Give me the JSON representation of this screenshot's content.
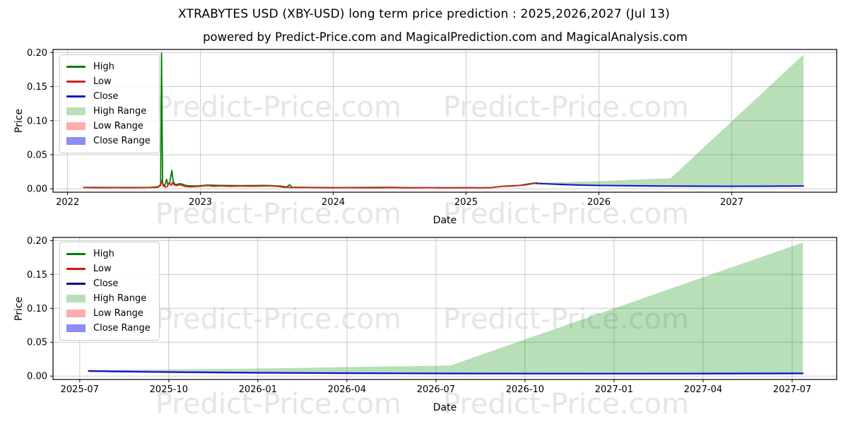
{
  "figure": {
    "title": "XTRABYTES USD (XBY-USD) long term price prediction : 2025,2026,2027 (Jul 13)",
    "subtitle": "powered by Predict-Price.com and MagicalPrediction.com and MagicalAnalysis.com",
    "watermark_text": "Predict-Price.com",
    "background_color": "#ffffff",
    "grid_color": "#c9c9c9",
    "spine_color": "#000000"
  },
  "chart_data": [
    {
      "type": "line",
      "name": "long-term-history-and-prediction",
      "xlabel": "Date",
      "ylabel": "Price",
      "grid": true,
      "legend_position": "upper-left",
      "xlim": [
        2021.89,
        2027.79
      ],
      "ylim": [
        -0.005,
        0.2045
      ],
      "xticks": [
        {
          "v": 2022,
          "label": "2022"
        },
        {
          "v": 2023,
          "label": "2023"
        },
        {
          "v": 2024,
          "label": "2024"
        },
        {
          "v": 2025,
          "label": "2025"
        },
        {
          "v": 2026,
          "label": "2026"
        },
        {
          "v": 2027,
          "label": "2027"
        }
      ],
      "yticks": [
        {
          "v": 0.0,
          "label": "0.00"
        },
        {
          "v": 0.05,
          "label": "0.05"
        },
        {
          "v": 0.1,
          "label": "0.10"
        },
        {
          "v": 0.15,
          "label": "0.15"
        },
        {
          "v": 0.2,
          "label": "0.20"
        }
      ],
      "legend": [
        {
          "label": "High",
          "swatch": "line",
          "color": "#008000"
        },
        {
          "label": "Low",
          "swatch": "line",
          "color": "#d62020"
        },
        {
          "label": "Close",
          "swatch": "line",
          "color": "#1515cd"
        },
        {
          "label": "High Range",
          "swatch": "patch",
          "color": "rgba(0,140,0,0.28)"
        },
        {
          "label": "Low Range",
          "swatch": "patch",
          "color": "rgba(255,70,70,0.45)"
        },
        {
          "label": "Close Range",
          "swatch": "patch",
          "color": "rgba(80,80,240,0.65)"
        }
      ],
      "bands": [
        {
          "name": "high-range",
          "fill": "rgba(0,140,0,0.28)",
          "x": [
            2025.53,
            2025.7,
            2025.9,
            2026.1,
            2026.3,
            2026.54,
            2026.8,
            2027.0,
            2027.25,
            2027.54
          ],
          "top": [
            0.009,
            0.0097,
            0.0106,
            0.012,
            0.0138,
            0.0155,
            0.0627,
            0.099,
            0.1444,
            0.197
          ],
          "bottom": [
            0.008,
            0.0066,
            0.0053,
            0.0047,
            0.0043,
            0.004,
            0.0038,
            0.0037,
            0.0038,
            0.0041
          ]
        },
        {
          "name": "low-range",
          "fill": "rgba(255,70,70,0.40)",
          "x": [
            2025.53,
            2025.8,
            2026.0,
            2026.54,
            2027.0,
            2027.54
          ],
          "top": [
            0.008,
            0.0058,
            0.005,
            0.004,
            0.0037,
            0.0041
          ],
          "bottom": [
            0.007,
            0.0046,
            0.0039,
            0.0029,
            0.0026,
            0.0028
          ]
        },
        {
          "name": "close-range",
          "fill": "rgba(80,80,240,0.50)",
          "x": [
            2025.53,
            2025.8,
            2026.0,
            2026.54,
            2027.0,
            2027.54
          ],
          "top": [
            0.0092,
            0.007,
            0.0062,
            0.0052,
            0.0049,
            0.0053
          ],
          "bottom": [
            0.0068,
            0.0046,
            0.0038,
            0.0028,
            0.0025,
            0.0029
          ]
        }
      ],
      "series": [
        {
          "name": "High",
          "color": "#008000",
          "width": 1.8,
          "points": [
            [
              2022.12,
              0.0022
            ],
            [
              2022.3,
              0.002
            ],
            [
              2022.5,
              0.002
            ],
            [
              2022.62,
              0.0022
            ],
            [
              2022.68,
              0.003
            ],
            [
              2022.7,
              0.006
            ],
            [
              2022.707,
              0.199
            ],
            [
              2022.715,
              0.008
            ],
            [
              2022.73,
              0.004
            ],
            [
              2022.745,
              0.014
            ],
            [
              2022.755,
              0.005
            ],
            [
              2022.77,
              0.01
            ],
            [
              2022.785,
              0.027
            ],
            [
              2022.795,
              0.011
            ],
            [
              2022.81,
              0.006
            ],
            [
              2022.85,
              0.0075
            ],
            [
              2022.9,
              0.0045
            ],
            [
              2022.97,
              0.004
            ],
            [
              2023.05,
              0.0055
            ],
            [
              2023.15,
              0.005
            ],
            [
              2023.3,
              0.0048
            ],
            [
              2023.5,
              0.005
            ],
            [
              2023.6,
              0.004
            ],
            [
              2023.65,
              0.0026
            ],
            [
              2023.67,
              0.006
            ],
            [
              2023.69,
              0.0024
            ],
            [
              2023.8,
              0.0022
            ],
            [
              2024.0,
              0.0018
            ],
            [
              2024.2,
              0.002
            ],
            [
              2024.42,
              0.0023
            ],
            [
              2024.6,
              0.0017
            ],
            [
              2024.8,
              0.0017
            ],
            [
              2025.0,
              0.0018
            ],
            [
              2025.1,
              0.0016
            ],
            [
              2025.2,
              0.002
            ],
            [
              2025.3,
              0.0042
            ],
            [
              2025.4,
              0.005
            ],
            [
              2025.48,
              0.0075
            ],
            [
              2025.53,
              0.0088
            ]
          ]
        },
        {
          "name": "Low",
          "color": "#d62020",
          "width": 1.8,
          "points": [
            [
              2022.12,
              0.0018
            ],
            [
              2022.25,
              0.0015
            ],
            [
              2022.35,
              0.0017
            ],
            [
              2022.45,
              0.0015
            ],
            [
              2022.55,
              0.0016
            ],
            [
              2022.62,
              0.0018
            ],
            [
              2022.68,
              0.0022
            ],
            [
              2022.7,
              0.005
            ],
            [
              2022.71,
              0.012
            ],
            [
              2022.72,
              0.004
            ],
            [
              2022.735,
              0.0025
            ],
            [
              2022.75,
              0.003
            ],
            [
              2022.765,
              0.009
            ],
            [
              2022.78,
              0.005
            ],
            [
              2022.79,
              0.0095
            ],
            [
              2022.8,
              0.006
            ],
            [
              2022.82,
              0.0045
            ],
            [
              2022.85,
              0.006
            ],
            [
              2022.88,
              0.0035
            ],
            [
              2022.92,
              0.0028
            ],
            [
              2022.97,
              0.0032
            ],
            [
              2023.02,
              0.0042
            ],
            [
              2023.06,
              0.0048
            ],
            [
              2023.1,
              0.0036
            ],
            [
              2023.15,
              0.0042
            ],
            [
              2023.22,
              0.0036
            ],
            [
              2023.3,
              0.0041
            ],
            [
              2023.38,
              0.0037
            ],
            [
              2023.46,
              0.004
            ],
            [
              2023.52,
              0.0043
            ],
            [
              2023.58,
              0.0036
            ],
            [
              2023.63,
              0.0022
            ],
            [
              2023.7,
              0.0018
            ],
            [
              2023.8,
              0.0019
            ],
            [
              2023.9,
              0.0016
            ],
            [
              2024.0,
              0.0015
            ],
            [
              2024.1,
              0.0017
            ],
            [
              2024.2,
              0.0015
            ],
            [
              2024.35,
              0.0014
            ],
            [
              2024.42,
              0.0019
            ],
            [
              2024.5,
              0.0015
            ],
            [
              2024.6,
              0.0014
            ],
            [
              2024.72,
              0.0017
            ],
            [
              2024.8,
              0.0014
            ],
            [
              2024.9,
              0.0013
            ],
            [
              2025.0,
              0.0015
            ],
            [
              2025.1,
              0.0013
            ],
            [
              2025.18,
              0.0016
            ],
            [
              2025.26,
              0.0034
            ],
            [
              2025.32,
              0.0038
            ],
            [
              2025.38,
              0.0045
            ],
            [
              2025.44,
              0.0055
            ],
            [
              2025.48,
              0.0068
            ],
            [
              2025.51,
              0.0078
            ],
            [
              2025.53,
              0.008
            ]
          ]
        },
        {
          "name": "Close",
          "color": "#1515cd",
          "width": 1.9,
          "points": [
            [
              2025.53,
              0.008
            ],
            [
              2025.62,
              0.0071
            ],
            [
              2025.72,
              0.0064
            ],
            [
              2025.85,
              0.0056
            ],
            [
              2026.0,
              0.005
            ],
            [
              2026.15,
              0.0046
            ],
            [
              2026.3,
              0.0043
            ],
            [
              2026.54,
              0.004
            ],
            [
              2026.8,
              0.0038
            ],
            [
              2027.0,
              0.0037
            ],
            [
              2027.25,
              0.0038
            ],
            [
              2027.54,
              0.0041
            ]
          ]
        }
      ]
    },
    {
      "type": "line",
      "name": "prediction-detail",
      "xlabel": "Date",
      "ylabel": "Price",
      "grid": true,
      "legend_position": "upper-left",
      "xlim": [
        2025.425,
        2027.625
      ],
      "ylim": [
        -0.005,
        0.2045
      ],
      "xticks": [
        {
          "v": 2025.5,
          "label": "2025-07"
        },
        {
          "v": 2025.75,
          "label": "2025-10"
        },
        {
          "v": 2026.0,
          "label": "2026-01"
        },
        {
          "v": 2026.25,
          "label": "2026-04"
        },
        {
          "v": 2026.5,
          "label": "2026-07"
        },
        {
          "v": 2026.75,
          "label": "2026-10"
        },
        {
          "v": 2027.0,
          "label": "2027-01"
        },
        {
          "v": 2027.25,
          "label": "2027-04"
        },
        {
          "v": 2027.5,
          "label": "2027-07"
        }
      ],
      "yticks": [
        {
          "v": 0.0,
          "label": "0.00"
        },
        {
          "v": 0.05,
          "label": "0.05"
        },
        {
          "v": 0.1,
          "label": "0.10"
        },
        {
          "v": 0.15,
          "label": "0.15"
        },
        {
          "v": 0.2,
          "label": "0.20"
        }
      ],
      "legend": [
        {
          "label": "High",
          "swatch": "line",
          "color": "#008000"
        },
        {
          "label": "Low",
          "swatch": "line",
          "color": "#e01010"
        },
        {
          "label": "Close",
          "swatch": "line",
          "color": "#00008b"
        },
        {
          "label": "High Range",
          "swatch": "patch",
          "color": "rgba(0,140,0,0.28)"
        },
        {
          "label": "Low Range",
          "swatch": "patch",
          "color": "rgba(255,70,70,0.45)"
        },
        {
          "label": "Close Range",
          "swatch": "patch",
          "color": "rgba(80,80,240,0.65)"
        }
      ],
      "bands": [
        {
          "name": "high-range",
          "fill": "rgba(0,140,0,0.28)",
          "x": [
            2025.525,
            2025.7,
            2025.9,
            2026.1,
            2026.3,
            2026.54,
            2026.8,
            2027.0,
            2027.25,
            2027.53
          ],
          "top": [
            0.0088,
            0.0096,
            0.0105,
            0.0119,
            0.0137,
            0.0155,
            0.0632,
            0.0999,
            0.1458,
            0.197
          ],
          "bottom": [
            0.0075,
            0.0062,
            0.0052,
            0.0046,
            0.0042,
            0.0039,
            0.0037,
            0.0036,
            0.0037,
            0.004
          ]
        },
        {
          "name": "low-range",
          "fill": "rgba(255,70,70,0.40)",
          "x": [
            2025.525,
            2025.8,
            2026.0,
            2026.54,
            2027.0,
            2027.53
          ],
          "top": [
            0.0075,
            0.0057,
            0.0049,
            0.0039,
            0.0036,
            0.004
          ],
          "bottom": [
            0.0064,
            0.0044,
            0.0038,
            0.0028,
            0.0025,
            0.0027
          ]
        },
        {
          "name": "close-range",
          "fill": "rgba(80,80,240,0.50)",
          "x": [
            2025.525,
            2025.8,
            2026.0,
            2026.54,
            2027.0,
            2027.53
          ],
          "top": [
            0.0088,
            0.007,
            0.0062,
            0.0052,
            0.0049,
            0.0053
          ],
          "bottom": [
            0.0062,
            0.0044,
            0.0036,
            0.0026,
            0.0023,
            0.0027
          ]
        }
      ],
      "series": [
        {
          "name": "Close",
          "color": "#1515cd",
          "width": 2.2,
          "points": [
            [
              2025.525,
              0.0075
            ],
            [
              2025.6,
              0.0069
            ],
            [
              2025.7,
              0.0062
            ],
            [
              2025.85,
              0.0055
            ],
            [
              2026.0,
              0.0049
            ],
            [
              2026.2,
              0.0044
            ],
            [
              2026.4,
              0.0041
            ],
            [
              2026.54,
              0.0039
            ],
            [
              2026.8,
              0.0037
            ],
            [
              2027.0,
              0.0036
            ],
            [
              2027.25,
              0.0037
            ],
            [
              2027.53,
              0.004
            ]
          ]
        }
      ]
    }
  ]
}
